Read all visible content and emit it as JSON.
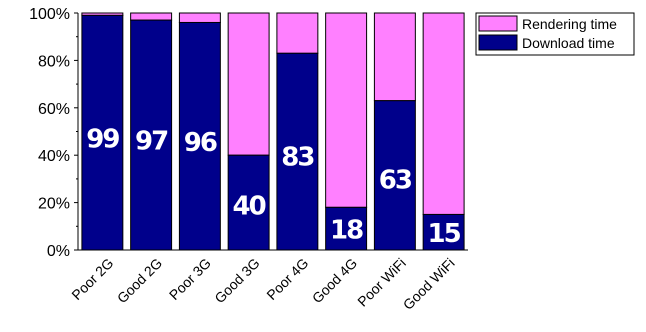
{
  "chart_data": {
    "type": "bar",
    "stacked": true,
    "categories": [
      "Poor 2G",
      "Good 2G",
      "Poor 3G",
      "Good 3G",
      "Poor 4G",
      "Good 4G",
      "Poor WiFi",
      "Good WiFi"
    ],
    "series": [
      {
        "name": "Download time",
        "values": [
          99,
          97,
          96,
          40,
          83,
          18,
          63,
          15
        ],
        "color": "#00008b"
      },
      {
        "name": "Rendering time",
        "values": [
          1,
          3,
          4,
          60,
          17,
          82,
          37,
          85
        ],
        "color": "#ff80ff"
      }
    ],
    "data_labels": [
      "99",
      "97",
      "96",
      "40",
      "83",
      "18",
      "63",
      "15"
    ],
    "y_ticks": [
      "0%",
      "20%",
      "40%",
      "60%",
      "80%",
      "100%"
    ],
    "ylim": [
      0,
      100
    ],
    "legend_position": "top-right",
    "grid": false
  }
}
